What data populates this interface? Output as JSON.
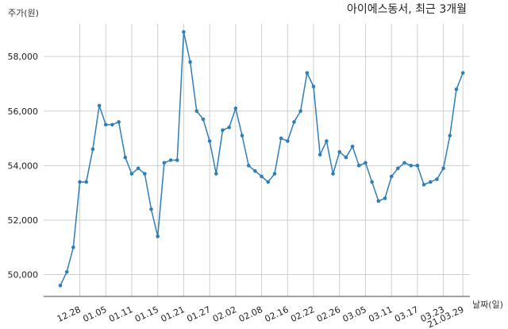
{
  "chart_data": {
    "type": "line",
    "title": "아이에스동서, 최근 3개월",
    "ylabel": "주가(원)",
    "xlabel": "날짜(일)",
    "ylim": [
      49200,
      59200
    ],
    "yticks": [
      50000,
      52000,
      54000,
      56000,
      58000
    ],
    "ytick_labels": [
      "50,000",
      "52,000",
      "54,000",
      "56,000",
      "58,000"
    ],
    "xticks": [
      {
        "index": 3,
        "label": "12.28"
      },
      {
        "index": 7,
        "label": "01.05"
      },
      {
        "index": 11,
        "label": "01.11"
      },
      {
        "index": 15,
        "label": "01.15"
      },
      {
        "index": 19,
        "label": "01.21"
      },
      {
        "index": 23,
        "label": "01.27"
      },
      {
        "index": 27,
        "label": "02.02"
      },
      {
        "index": 31,
        "label": "02.08"
      },
      {
        "index": 35,
        "label": "02.16"
      },
      {
        "index": 39,
        "label": "02.22"
      },
      {
        "index": 43,
        "label": "02.26"
      },
      {
        "index": 47,
        "label": "03.05"
      },
      {
        "index": 51,
        "label": "03.11"
      },
      {
        "index": 55,
        "label": "03.17"
      },
      {
        "index": 59,
        "label": "03.23"
      },
      {
        "index": 62,
        "label": "21.03.29"
      }
    ],
    "grid": true,
    "color": "#2e7fb8",
    "values": [
      49600,
      50100,
      51000,
      53400,
      53400,
      54600,
      56200,
      55500,
      55500,
      55600,
      54300,
      53700,
      53900,
      53700,
      52400,
      51400,
      54100,
      54200,
      54200,
      58900,
      57800,
      56000,
      55700,
      54900,
      53700,
      55300,
      55400,
      56100,
      55100,
      54000,
      53800,
      53600,
      53400,
      53700,
      55000,
      54900,
      55600,
      56000,
      57400,
      56900,
      54400,
      54900,
      53700,
      54500,
      54300,
      54700,
      54000,
      54100,
      53400,
      52700,
      52800,
      53600,
      53900,
      54100,
      54000,
      54000,
      53300,
      53400,
      53500,
      53900,
      55100,
      56800,
      57400
    ]
  }
}
